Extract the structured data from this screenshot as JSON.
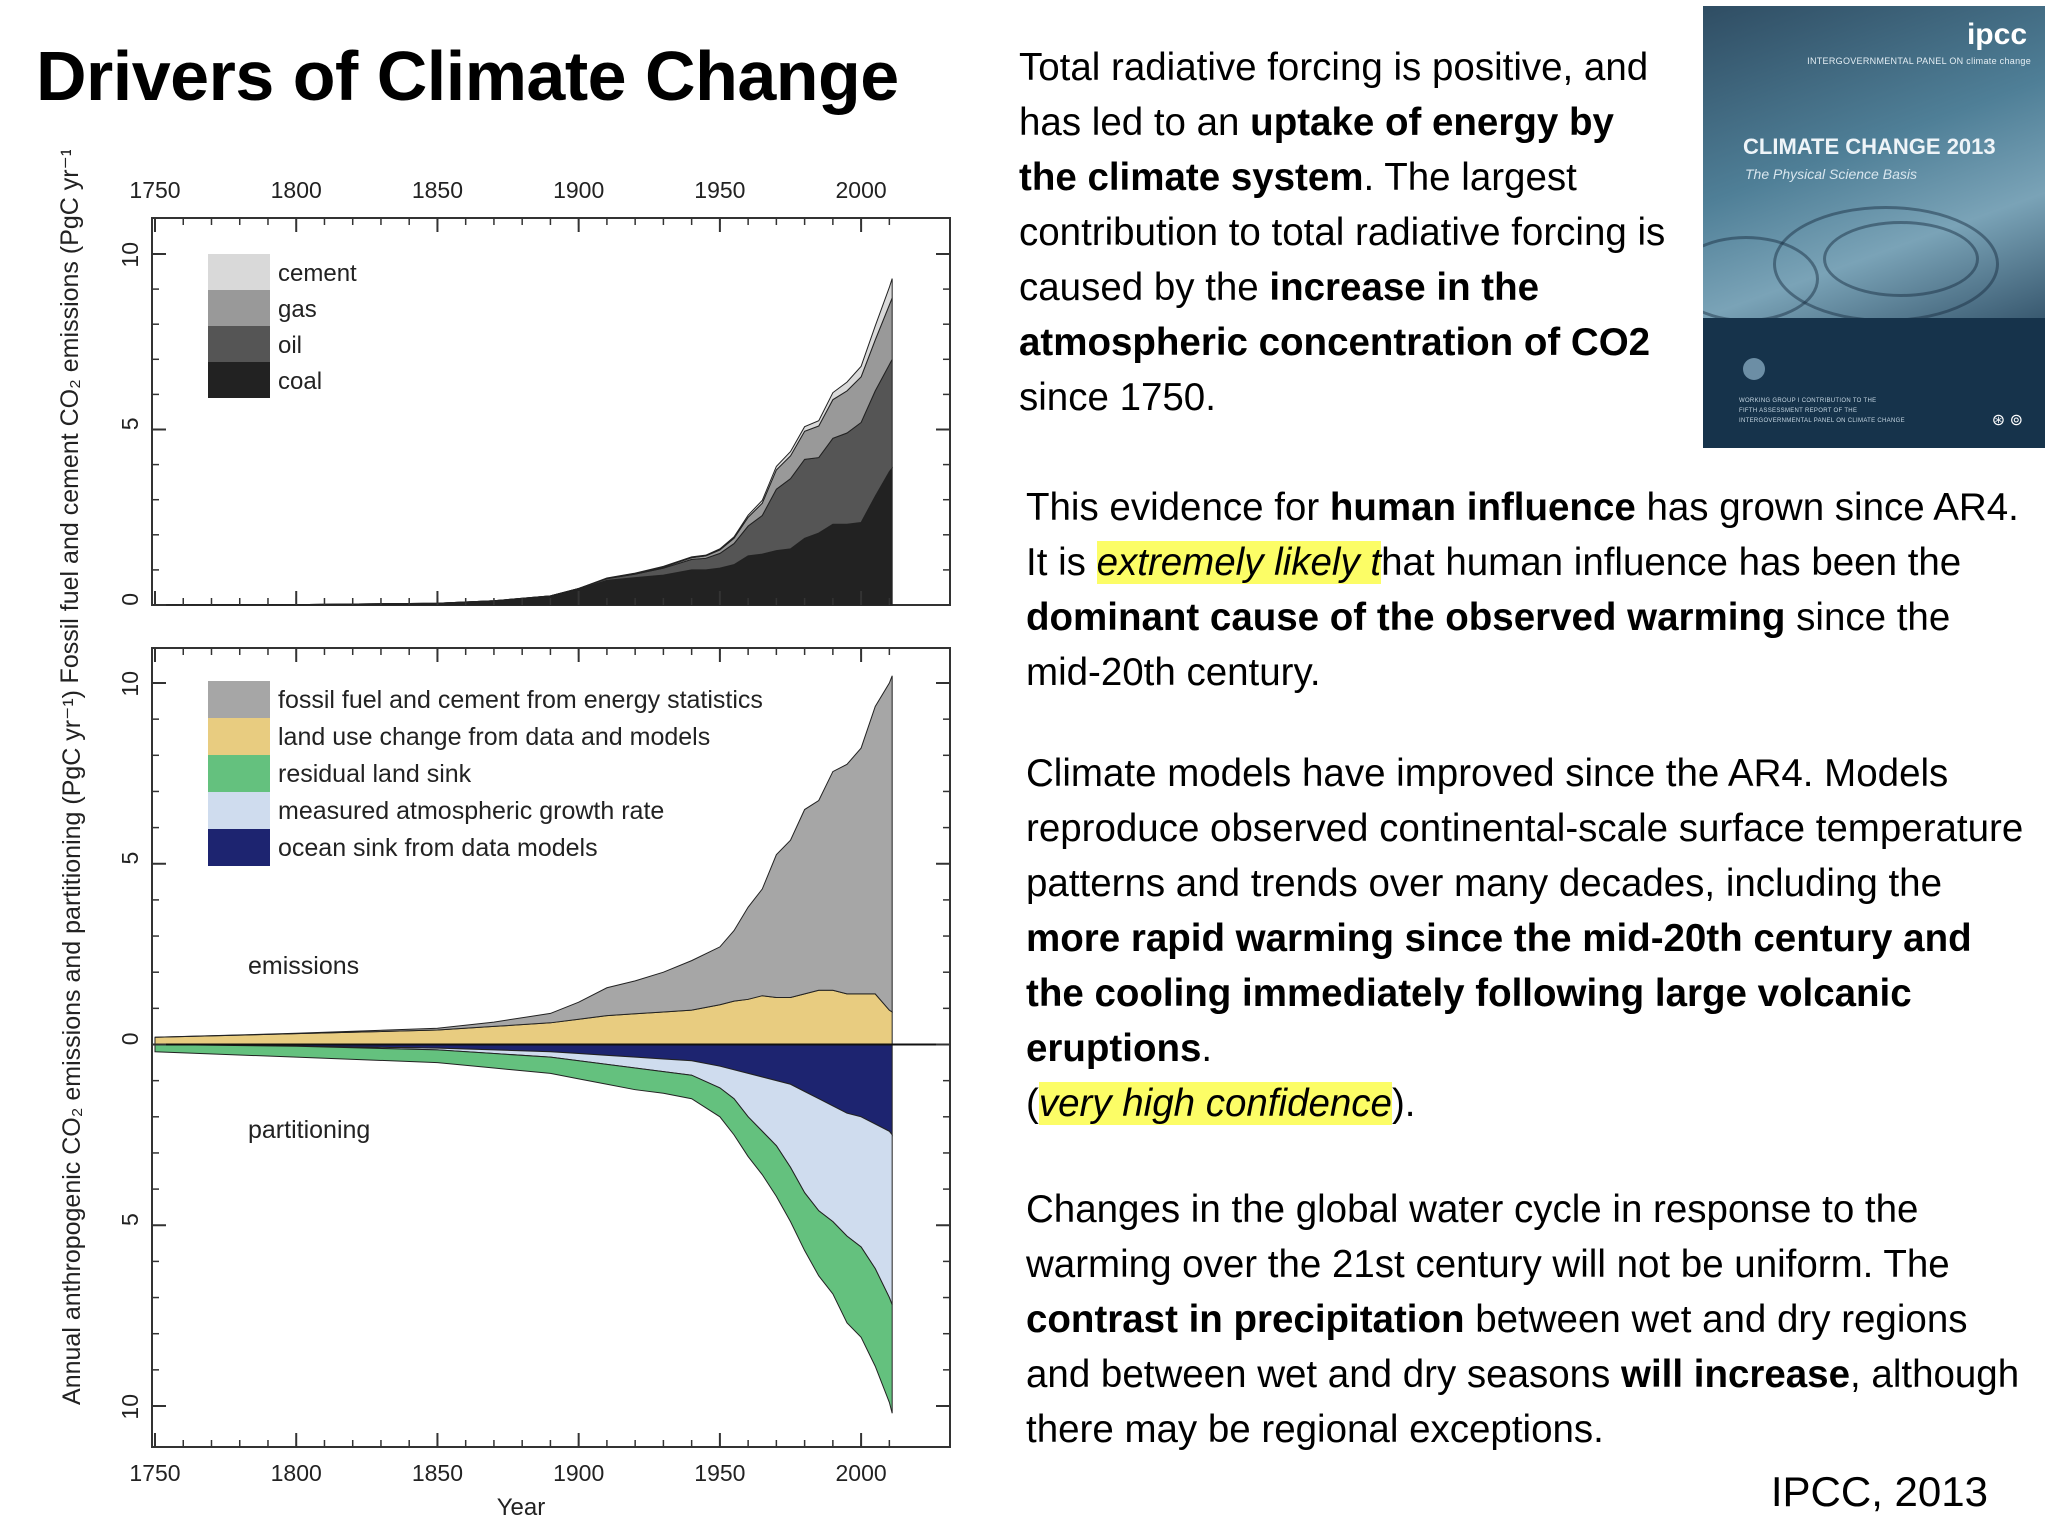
{
  "slide": {
    "title": "Drivers of Climate Change",
    "source": "IPCC, 2013"
  },
  "paragraphs": {
    "p1": [
      {
        "t": "Total radiative forcing is positive, and has led to an "
      },
      {
        "t": "uptake of energy by the climate system",
        "b": true
      },
      {
        "t": ". The largest contribution to total radiative forcing is caused by the "
      },
      {
        "t": "increase in the atmospheric concentration of CO2",
        "b": true
      },
      {
        "t": " since 1750."
      }
    ],
    "p2": [
      {
        "t": "This evidence for "
      },
      {
        "t": "human influence",
        "b": true
      },
      {
        "t": " has grown since AR4. It is "
      },
      {
        "t": "extremely likely t",
        "hl": true
      },
      {
        "t": "hat human influence has been the "
      },
      {
        "t": "dominant cause of the observed warming",
        "b": true
      },
      {
        "t": " since the mid-20th century."
      }
    ],
    "p3": [
      {
        "t": "Climate models have improved since the AR4. Models reproduce observed continental-scale surface temperature patterns and trends over many decades, including the "
      },
      {
        "t": "more rapid warming since the mid-20th century and the cooling immediately following large volcanic eruptions",
        "b": true
      },
      {
        "t": ".",
        "br": true
      },
      {
        "t": "("
      },
      {
        "t": "very high confidence",
        "hl": true
      },
      {
        "t": ")."
      }
    ],
    "p4": [
      {
        "t": "Changes in the global water cycle in response to the warming over the 21st century will not be uniform. The "
      },
      {
        "t": "contrast in precipitation",
        "b": true
      },
      {
        "t": " between wet and dry regions and between wet and dry seasons "
      },
      {
        "t": "will increase",
        "b": true
      },
      {
        "t": ", although there may be regional exceptions."
      }
    ]
  },
  "report_cover": {
    "logo": "ipcc",
    "org": "INTERGOVERNMENTAL PANEL ON climate change",
    "title": "CLIMATE CHANGE 2013",
    "subtitle": "The Physical Science Basis",
    "fineprint": [
      "WORKING GROUP I CONTRIBUTION TO THE",
      "FIFTH ASSESSMENT REPORT OF THE",
      "INTERGOVERNMENTAL PANEL ON CLIMATE CHANGE"
    ],
    "colors": {
      "cover_top": "#4f7f97",
      "cover_band": "#16334b"
    }
  },
  "chart_data": [
    {
      "type": "area",
      "stacked": true,
      "title": "",
      "ylabel": "Fossil fuel and cement CO₂ emissions (PgC yr⁻¹)",
      "xlabel": "",
      "xlim": [
        1750,
        2012
      ],
      "ylim": [
        0,
        10
      ],
      "x_ticks": [
        1750,
        1800,
        1850,
        1900,
        1950,
        2000
      ],
      "y_ticks": [
        0,
        5,
        10
      ],
      "legend_position": "top-left",
      "x": [
        1750,
        1800,
        1850,
        1870,
        1890,
        1900,
        1910,
        1920,
        1930,
        1940,
        1945,
        1950,
        1955,
        1960,
        1965,
        1970,
        1975,
        1980,
        1985,
        1990,
        1995,
        2000,
        2005,
        2010,
        2011
      ],
      "series": [
        {
          "name": "coal",
          "color": "#222222",
          "values": [
            0.0,
            0.01,
            0.05,
            0.12,
            0.25,
            0.45,
            0.7,
            0.78,
            0.85,
            1.0,
            1.0,
            1.05,
            1.15,
            1.4,
            1.45,
            1.55,
            1.6,
            1.9,
            2.05,
            2.3,
            2.3,
            2.35,
            3.1,
            3.8,
            3.9
          ]
        },
        {
          "name": "oil",
          "color": "#555555",
          "values": [
            0.0,
            0.0,
            0.0,
            0.0,
            0.01,
            0.02,
            0.05,
            0.1,
            0.2,
            0.3,
            0.33,
            0.42,
            0.6,
            0.85,
            1.1,
            1.75,
            2.0,
            2.25,
            2.15,
            2.45,
            2.6,
            2.85,
            3.0,
            3.05,
            3.1
          ]
        },
        {
          "name": "gas",
          "color": "#999999",
          "values": [
            0.0,
            0.0,
            0.0,
            0.0,
            0.0,
            0.0,
            0.01,
            0.02,
            0.03,
            0.05,
            0.07,
            0.1,
            0.15,
            0.25,
            0.35,
            0.55,
            0.65,
            0.8,
            0.9,
            1.1,
            1.2,
            1.3,
            1.45,
            1.7,
            1.75
          ]
        },
        {
          "name": "cement",
          "color": "#d9d9d9",
          "values": [
            0.0,
            0.0,
            0.0,
            0.0,
            0.0,
            0.0,
            0.01,
            0.01,
            0.02,
            0.02,
            0.02,
            0.03,
            0.04,
            0.06,
            0.08,
            0.1,
            0.12,
            0.13,
            0.15,
            0.2,
            0.25,
            0.3,
            0.4,
            0.5,
            0.55
          ]
        }
      ]
    },
    {
      "type": "area",
      "stacked": true,
      "title": "",
      "ylabel": "Annual anthropogenic CO₂ emissions and partitioning (PgC yr⁻¹)",
      "xlabel": "Year",
      "xlim": [
        1750,
        2012
      ],
      "ylim": [
        -10,
        10
      ],
      "y_tick_labels": [
        "10",
        "5",
        "0",
        "5",
        "10"
      ],
      "y_ticks": [
        10,
        5,
        0,
        -5,
        -10
      ],
      "x_ticks": [
        1750,
        1800,
        1850,
        1900,
        1950,
        2000
      ],
      "legend_position": "top-left",
      "annotations": [
        "emissions",
        "partitioning"
      ],
      "x": [
        1750,
        1800,
        1850,
        1870,
        1890,
        1900,
        1910,
        1920,
        1930,
        1940,
        1950,
        1955,
        1960,
        1965,
        1970,
        1975,
        1980,
        1985,
        1990,
        1995,
        2000,
        2005,
        2010,
        2011
      ],
      "series": [
        {
          "name": "land use change from data and models",
          "color": "#e8cc80",
          "group": "emissions",
          "values": [
            0.2,
            0.3,
            0.4,
            0.5,
            0.6,
            0.7,
            0.8,
            0.85,
            0.9,
            0.95,
            1.1,
            1.2,
            1.25,
            1.35,
            1.3,
            1.3,
            1.4,
            1.5,
            1.5,
            1.4,
            1.4,
            1.4,
            0.95,
            0.9
          ]
        },
        {
          "name": "fossil fuel and cement from energy statistics",
          "color": "#a6a6a6",
          "group": "emissions",
          "values": [
            0.0,
            0.01,
            0.05,
            0.12,
            0.26,
            0.47,
            0.77,
            0.91,
            1.1,
            1.37,
            1.6,
            1.95,
            2.55,
            2.95,
            3.95,
            4.35,
            5.1,
            5.25,
            6.05,
            6.35,
            6.8,
            7.95,
            9.05,
            9.3
          ]
        },
        {
          "name": "ocean sink from data models",
          "color": "#1d2470",
          "group": "partitioning",
          "values": [
            0.0,
            -0.05,
            -0.1,
            -0.15,
            -0.2,
            -0.25,
            -0.3,
            -0.35,
            -0.4,
            -0.45,
            -0.6,
            -0.7,
            -0.8,
            -0.9,
            -1.0,
            -1.1,
            -1.3,
            -1.5,
            -1.7,
            -1.9,
            -2.0,
            -2.2,
            -2.4,
            -2.5
          ]
        },
        {
          "name": "measured atmospheric growth rate",
          "color": "#cfdcee",
          "group": "partitioning",
          "values": [
            0.0,
            0.0,
            -0.05,
            -0.1,
            -0.15,
            -0.2,
            -0.25,
            -0.3,
            -0.35,
            -0.4,
            -0.6,
            -0.8,
            -1.2,
            -1.5,
            -1.8,
            -2.3,
            -2.8,
            -3.1,
            -3.2,
            -3.4,
            -3.6,
            -4.0,
            -4.6,
            -4.7
          ]
        },
        {
          "name": "residual land sink",
          "color": "#64c17e",
          "group": "partitioning",
          "values": [
            -0.2,
            -0.3,
            -0.35,
            -0.4,
            -0.45,
            -0.5,
            -0.55,
            -0.6,
            -0.6,
            -0.65,
            -0.8,
            -1.0,
            -1.1,
            -1.2,
            -1.4,
            -1.5,
            -1.6,
            -1.8,
            -2.0,
            -2.4,
            -2.5,
            -2.7,
            -2.9,
            -3.0
          ]
        }
      ]
    }
  ]
}
